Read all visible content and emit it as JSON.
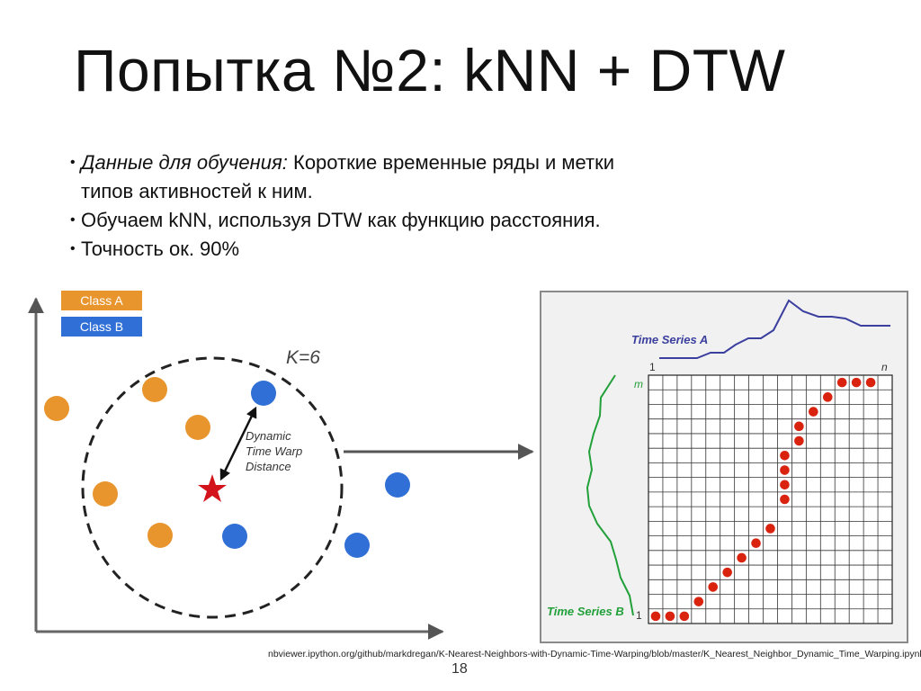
{
  "slide": {
    "title": "Попытка №2: kNN + DTW",
    "bullets": [
      {
        "label": "Данные для обучения:",
        "text": "Короткие временные ряды и метки",
        "text_line2": "типов активностей к ним."
      },
      {
        "label": "",
        "text": "Обучаем kNN, используя DTW как функцию расстояния."
      },
      {
        "label": "",
        "text": "Точность ок. 90%"
      }
    ],
    "source": "nbviewer.ipython.org/github/markdregan/K-Nearest-Neighbors-with-Dynamic-Time-Warping/blob/master/K_Nearest_Neighbor_Dynamic_Time_Warping.ipynb",
    "page_number": "18"
  },
  "knn": {
    "legend": [
      {
        "label": "Class A",
        "color": "#e8952e"
      },
      {
        "label": "Class B",
        "color": "#2f6fd6"
      }
    ],
    "k_label": "K=6",
    "distance_label": [
      "Dynamic",
      "Time Warp",
      "Distance"
    ],
    "query_color": "#d2131b"
  },
  "dtw": {
    "series_a_label": "Time Series A",
    "series_b_label": "Time Series B",
    "axis_start_top": "1",
    "axis_end_top": "n",
    "axis_start_left": "1",
    "axis_end_left": "m",
    "series_a_color": "#3b3f9e",
    "series_b_color": "#22a03a",
    "path_color": "#d9230f"
  }
}
